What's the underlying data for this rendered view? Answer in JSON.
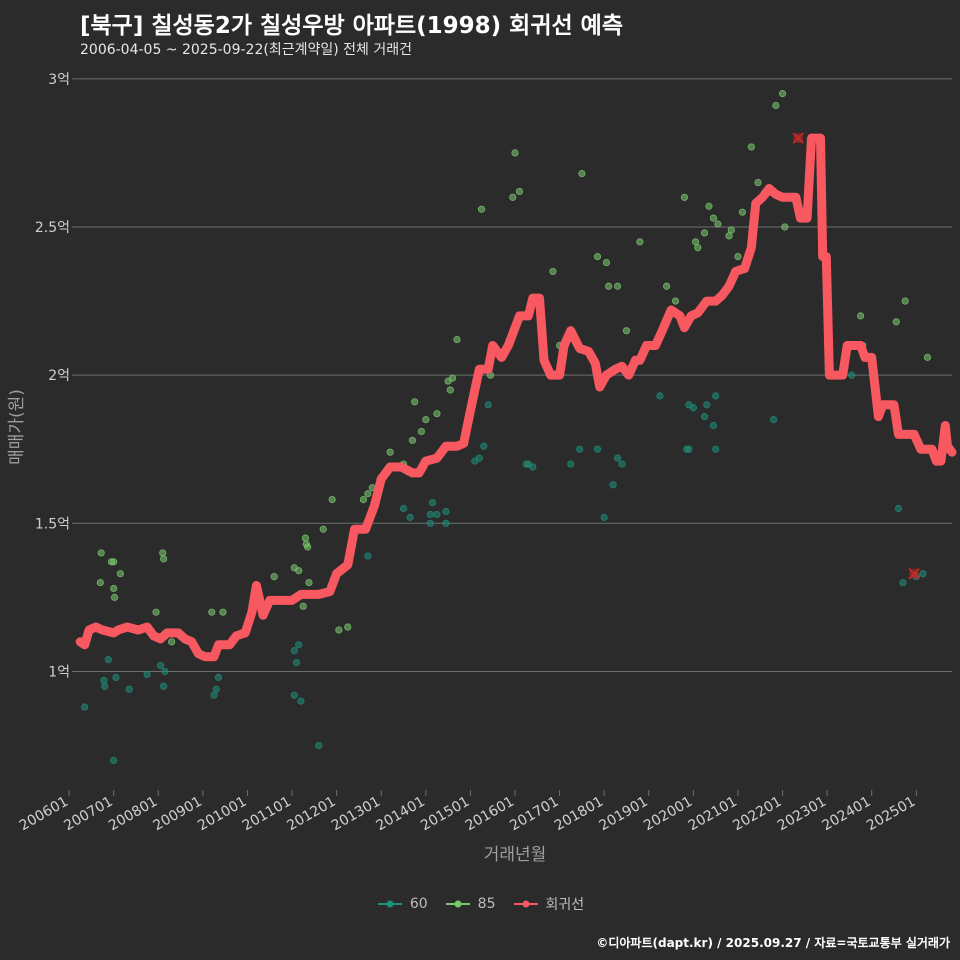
{
  "header": {
    "title": "[북구] 칠성동2가 칠성우방 아파트(1998) 회귀선 예측",
    "subtitle": "2006-04-05 ~ 2025-09-22(최근계약일) 전체 거래건"
  },
  "footer": {
    "credit": "©디아파트(dapt.kr) / 2025.09.27 / 자료=국토교통부 실거래가"
  },
  "colors": {
    "background": "#2b2b2b",
    "grid": "#6e6e6e",
    "series_60": "#1e8f7a",
    "series_85": "#7bc96f",
    "regression": "#f8585f",
    "outlier_marker": "#c62828"
  },
  "chart_data": {
    "type": "scatter",
    "xlabel": "거래년월",
    "ylabel": "매매가(원)",
    "x_range": [
      2006.2,
      2025.8
    ],
    "ylim": [
      0.6,
      3.05
    ],
    "y_ticks": [
      {
        "value": 1.0,
        "label": "1억"
      },
      {
        "value": 1.5,
        "label": "1.5억"
      },
      {
        "value": 2.0,
        "label": "2억"
      },
      {
        "value": 2.5,
        "label": "2.5억"
      },
      {
        "value": 3.0,
        "label": "3억"
      }
    ],
    "x_ticks": [
      {
        "value": 2006.0,
        "label": "200601"
      },
      {
        "value": 2007.0,
        "label": "200701"
      },
      {
        "value": 2008.0,
        "label": "200801"
      },
      {
        "value": 2009.0,
        "label": "200901"
      },
      {
        "value": 2010.0,
        "label": "201001"
      },
      {
        "value": 2011.0,
        "label": "201101"
      },
      {
        "value": 2012.0,
        "label": "201201"
      },
      {
        "value": 2013.0,
        "label": "201301"
      },
      {
        "value": 2014.0,
        "label": "201401"
      },
      {
        "value": 2015.0,
        "label": "201501"
      },
      {
        "value": 2016.0,
        "label": "201601"
      },
      {
        "value": 2017.0,
        "label": "201701"
      },
      {
        "value": 2018.0,
        "label": "201801"
      },
      {
        "value": 2019.0,
        "label": "201901"
      },
      {
        "value": 2020.0,
        "label": "202001"
      },
      {
        "value": 2021.0,
        "label": "202101"
      },
      {
        "value": 2022.0,
        "label": "202201"
      },
      {
        "value": 2023.0,
        "label": "202301"
      },
      {
        "value": 2024.0,
        "label": "202401"
      },
      {
        "value": 2025.0,
        "label": "202501"
      }
    ],
    "grid": true,
    "legend_position": "bottom",
    "series": [
      {
        "name": "60",
        "color": "#1e8f7a",
        "points": [
          [
            2006.35,
            0.88
          ],
          [
            2006.78,
            0.97
          ],
          [
            2006.8,
            0.95
          ],
          [
            2006.88,
            1.04
          ],
          [
            2007.0,
            0.7
          ],
          [
            2007.05,
            0.98
          ],
          [
            2007.35,
            0.94
          ],
          [
            2007.75,
            0.99
          ],
          [
            2008.05,
            1.02
          ],
          [
            2008.12,
            0.95
          ],
          [
            2008.15,
            1.0
          ],
          [
            2009.25,
            0.92
          ],
          [
            2009.3,
            0.94
          ],
          [
            2009.35,
            0.98
          ],
          [
            2011.05,
            0.92
          ],
          [
            2011.05,
            1.07
          ],
          [
            2011.1,
            1.03
          ],
          [
            2011.15,
            1.09
          ],
          [
            2011.2,
            0.9
          ],
          [
            2011.6,
            0.75
          ],
          [
            2012.7,
            1.39
          ],
          [
            2013.5,
            1.55
          ],
          [
            2013.65,
            1.52
          ],
          [
            2014.1,
            1.5
          ],
          [
            2014.1,
            1.53
          ],
          [
            2014.15,
            1.57
          ],
          [
            2014.25,
            1.53
          ],
          [
            2014.45,
            1.5
          ],
          [
            2014.45,
            1.54
          ],
          [
            2015.1,
            1.71
          ],
          [
            2015.2,
            1.72
          ],
          [
            2015.3,
            1.76
          ],
          [
            2015.4,
            1.9
          ],
          [
            2016.25,
            1.7
          ],
          [
            2016.3,
            1.7
          ],
          [
            2016.4,
            1.69
          ],
          [
            2017.25,
            1.7
          ],
          [
            2017.45,
            1.75
          ],
          [
            2017.85,
            1.75
          ],
          [
            2018.0,
            1.52
          ],
          [
            2018.2,
            1.63
          ],
          [
            2018.3,
            1.72
          ],
          [
            2018.4,
            1.7
          ],
          [
            2019.25,
            1.93
          ],
          [
            2019.85,
            1.75
          ],
          [
            2019.9,
            1.75
          ],
          [
            2019.9,
            1.9
          ],
          [
            2020.0,
            1.89
          ],
          [
            2020.25,
            1.86
          ],
          [
            2020.3,
            1.9
          ],
          [
            2020.45,
            1.83
          ],
          [
            2020.5,
            1.93
          ],
          [
            2020.5,
            1.75
          ],
          [
            2021.8,
            1.85
          ],
          [
            2023.55,
            2.0
          ],
          [
            2024.6,
            1.55
          ],
          [
            2024.7,
            1.3
          ],
          [
            2025.0,
            1.32
          ],
          [
            2025.15,
            1.33
          ]
        ]
      },
      {
        "name": "85",
        "color": "#7bc96f",
        "points": [
          [
            2006.7,
            1.3
          ],
          [
            2006.72,
            1.4
          ],
          [
            2006.95,
            1.37
          ],
          [
            2007.0,
            1.37
          ],
          [
            2007.0,
            1.28
          ],
          [
            2007.02,
            1.25
          ],
          [
            2007.15,
            1.33
          ],
          [
            2007.95,
            1.2
          ],
          [
            2008.1,
            1.4
          ],
          [
            2008.12,
            1.38
          ],
          [
            2008.3,
            1.1
          ],
          [
            2009.2,
            1.2
          ],
          [
            2009.45,
            1.2
          ],
          [
            2010.6,
            1.32
          ],
          [
            2011.05,
            1.35
          ],
          [
            2011.15,
            1.34
          ],
          [
            2011.25,
            1.22
          ],
          [
            2011.3,
            1.45
          ],
          [
            2011.32,
            1.43
          ],
          [
            2011.35,
            1.42
          ],
          [
            2011.38,
            1.3
          ],
          [
            2011.4,
            1.26
          ],
          [
            2011.7,
            1.48
          ],
          [
            2011.9,
            1.58
          ],
          [
            2012.05,
            1.14
          ],
          [
            2012.25,
            1.15
          ],
          [
            2012.6,
            1.58
          ],
          [
            2012.7,
            1.6
          ],
          [
            2012.8,
            1.62
          ],
          [
            2013.2,
            1.74
          ],
          [
            2013.5,
            1.7
          ],
          [
            2013.7,
            1.78
          ],
          [
            2013.75,
            1.91
          ],
          [
            2013.9,
            1.81
          ],
          [
            2014.0,
            1.85
          ],
          [
            2014.25,
            1.87
          ],
          [
            2014.5,
            1.98
          ],
          [
            2014.55,
            1.95
          ],
          [
            2014.6,
            1.99
          ],
          [
            2014.7,
            2.12
          ],
          [
            2015.25,
            2.56
          ],
          [
            2015.45,
            2.0
          ],
          [
            2015.95,
            2.6
          ],
          [
            2016.0,
            2.75
          ],
          [
            2016.1,
            2.62
          ],
          [
            2016.85,
            2.35
          ],
          [
            2017.0,
            2.1
          ],
          [
            2017.5,
            2.68
          ],
          [
            2017.85,
            2.4
          ],
          [
            2018.05,
            2.38
          ],
          [
            2018.1,
            2.3
          ],
          [
            2018.3,
            2.3
          ],
          [
            2018.5,
            2.15
          ],
          [
            2018.8,
            2.45
          ],
          [
            2019.4,
            2.3
          ],
          [
            2019.6,
            2.25
          ],
          [
            2019.8,
            2.6
          ],
          [
            2020.05,
            2.45
          ],
          [
            2020.1,
            2.43
          ],
          [
            2020.25,
            2.48
          ],
          [
            2020.35,
            2.57
          ],
          [
            2020.45,
            2.53
          ],
          [
            2020.55,
            2.51
          ],
          [
            2020.8,
            2.47
          ],
          [
            2020.85,
            2.49
          ],
          [
            2021.0,
            2.4
          ],
          [
            2021.1,
            2.55
          ],
          [
            2021.3,
            2.77
          ],
          [
            2021.45,
            2.65
          ],
          [
            2021.85,
            2.91
          ],
          [
            2022.0,
            2.95
          ],
          [
            2022.05,
            2.5
          ],
          [
            2023.75,
            2.2
          ],
          [
            2023.8,
            2.1
          ],
          [
            2024.55,
            2.18
          ],
          [
            2024.75,
            2.25
          ],
          [
            2025.25,
            2.06
          ]
        ]
      }
    ],
    "regression": {
      "name": "회귀선",
      "color": "#f8585f",
      "points": [
        [
          2006.25,
          1.1
        ],
        [
          2006.35,
          1.09
        ],
        [
          2006.45,
          1.14
        ],
        [
          2006.6,
          1.15
        ],
        [
          2006.75,
          1.14
        ],
        [
          2007.0,
          1.13
        ],
        [
          2007.1,
          1.14
        ],
        [
          2007.3,
          1.15
        ],
        [
          2007.55,
          1.14
        ],
        [
          2007.75,
          1.15
        ],
        [
          2007.9,
          1.12
        ],
        [
          2008.05,
          1.11
        ],
        [
          2008.2,
          1.13
        ],
        [
          2008.45,
          1.13
        ],
        [
          2008.6,
          1.11
        ],
        [
          2008.75,
          1.1
        ],
        [
          2008.9,
          1.06
        ],
        [
          2009.05,
          1.05
        ],
        [
          2009.25,
          1.05
        ],
        [
          2009.35,
          1.09
        ],
        [
          2009.6,
          1.09
        ],
        [
          2009.75,
          1.12
        ],
        [
          2009.95,
          1.13
        ],
        [
          2010.1,
          1.2
        ],
        [
          2010.2,
          1.29
        ],
        [
          2010.35,
          1.19
        ],
        [
          2010.5,
          1.24
        ],
        [
          2010.75,
          1.24
        ],
        [
          2011.0,
          1.24
        ],
        [
          2011.2,
          1.26
        ],
        [
          2011.45,
          1.26
        ],
        [
          2011.6,
          1.26
        ],
        [
          2011.85,
          1.27
        ],
        [
          2012.0,
          1.33
        ],
        [
          2012.25,
          1.36
        ],
        [
          2012.4,
          1.48
        ],
        [
          2012.65,
          1.48
        ],
        [
          2012.85,
          1.56
        ],
        [
          2013.0,
          1.65
        ],
        [
          2013.2,
          1.69
        ],
        [
          2013.45,
          1.69
        ],
        [
          2013.7,
          1.67
        ],
        [
          2013.85,
          1.67
        ],
        [
          2014.0,
          1.71
        ],
        [
          2014.25,
          1.72
        ],
        [
          2014.45,
          1.76
        ],
        [
          2014.7,
          1.76
        ],
        [
          2014.85,
          1.77
        ],
        [
          2015.0,
          1.88
        ],
        [
          2015.2,
          2.02
        ],
        [
          2015.4,
          2.02
        ],
        [
          2015.5,
          2.1
        ],
        [
          2015.7,
          2.06
        ],
        [
          2015.85,
          2.1
        ],
        [
          2015.95,
          2.14
        ],
        [
          2016.1,
          2.2
        ],
        [
          2016.3,
          2.2
        ],
        [
          2016.4,
          2.26
        ],
        [
          2016.55,
          2.26
        ],
        [
          2016.65,
          2.05
        ],
        [
          2016.8,
          2.0
        ],
        [
          2016.95,
          2.0
        ],
        [
          2017.0,
          2.0
        ],
        [
          2017.1,
          2.1
        ],
        [
          2017.25,
          2.15
        ],
        [
          2017.45,
          2.09
        ],
        [
          2017.65,
          2.08
        ],
        [
          2017.8,
          2.04
        ],
        [
          2017.9,
          1.96
        ],
        [
          2018.05,
          2.0
        ],
        [
          2018.25,
          2.02
        ],
        [
          2018.4,
          2.03
        ],
        [
          2018.55,
          2.0
        ],
        [
          2018.7,
          2.05
        ],
        [
          2018.8,
          2.05
        ],
        [
          2018.95,
          2.1
        ],
        [
          2019.15,
          2.1
        ],
        [
          2019.3,
          2.15
        ],
        [
          2019.5,
          2.22
        ],
        [
          2019.7,
          2.2
        ],
        [
          2019.8,
          2.16
        ],
        [
          2019.95,
          2.2
        ],
        [
          2020.1,
          2.21
        ],
        [
          2020.3,
          2.25
        ],
        [
          2020.5,
          2.25
        ],
        [
          2020.65,
          2.27
        ],
        [
          2020.8,
          2.3
        ],
        [
          2020.95,
          2.35
        ],
        [
          2021.15,
          2.36
        ],
        [
          2021.3,
          2.43
        ],
        [
          2021.4,
          2.58
        ],
        [
          2021.55,
          2.6
        ],
        [
          2021.7,
          2.63
        ],
        [
          2021.85,
          2.61
        ],
        [
          2022.0,
          2.6
        ],
        [
          2022.15,
          2.6
        ],
        [
          2022.3,
          2.6
        ],
        [
          2022.4,
          2.53
        ],
        [
          2022.55,
          2.53
        ],
        [
          2022.65,
          2.8
        ],
        [
          2022.85,
          2.8
        ],
        [
          2022.9,
          2.4
        ],
        [
          2022.98,
          2.4
        ],
        [
          2023.05,
          2.0
        ],
        [
          2023.35,
          2.0
        ],
        [
          2023.45,
          2.1
        ],
        [
          2023.75,
          2.1
        ],
        [
          2023.85,
          2.06
        ],
        [
          2024.0,
          2.06
        ],
        [
          2024.15,
          1.86
        ],
        [
          2024.25,
          1.9
        ],
        [
          2024.5,
          1.9
        ],
        [
          2024.6,
          1.8
        ],
        [
          2024.95,
          1.8
        ],
        [
          2025.1,
          1.75
        ],
        [
          2025.35,
          1.75
        ],
        [
          2025.45,
          1.71
        ],
        [
          2025.55,
          1.71
        ],
        [
          2025.65,
          1.83
        ],
        [
          2025.7,
          1.76
        ],
        [
          2025.8,
          1.74
        ]
      ]
    },
    "outliers": [
      [
        2022.35,
        2.8
      ],
      [
        2024.95,
        1.33
      ]
    ]
  },
  "legend": {
    "items": [
      {
        "label": "60",
        "color": "#1e8f7a"
      },
      {
        "label": "85",
        "color": "#7bc96f"
      },
      {
        "label": "회귀선",
        "color": "#f8585f"
      }
    ]
  }
}
